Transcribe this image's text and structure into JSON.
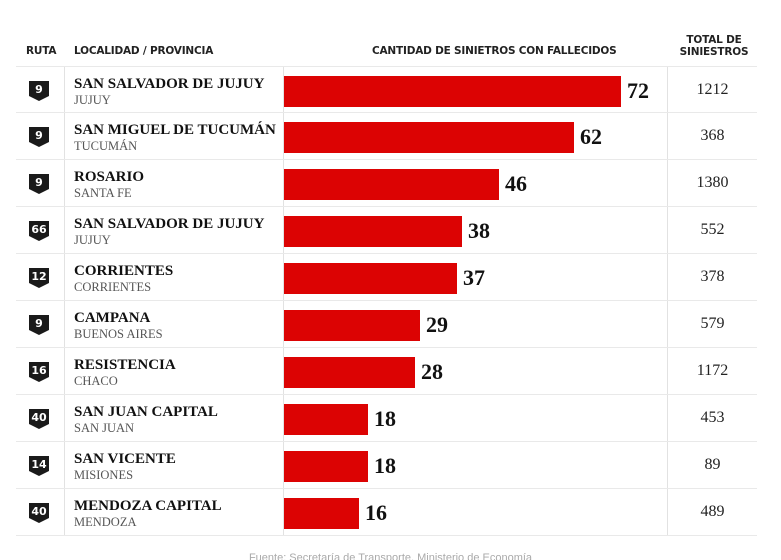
{
  "headers": {
    "ruta": "RUTA",
    "localidad": "LOCALIDAD / PROVINCIA",
    "cantidad": "CANTIDAD DE SINIETROS CON FALLECIDOS",
    "total_line1": "TOTAL DE",
    "total_line2": "SINIESTROS"
  },
  "rows": [
    {
      "ruta": "9",
      "city": "SAN SALVADOR DE JUJUY",
      "province": "JUJUY",
      "fatal": "72",
      "total": "1212"
    },
    {
      "ruta": "9",
      "city": "SAN MIGUEL DE TUCUMÁN",
      "province": "TUCUMÁN",
      "fatal": "62",
      "total": "368"
    },
    {
      "ruta": "9",
      "city": "ROSARIO",
      "province": "SANTA FE",
      "fatal": "46",
      "total": "1380"
    },
    {
      "ruta": "66",
      "city": "SAN SALVADOR DE JUJUY",
      "province": "JUJUY",
      "fatal": "38",
      "total": "552"
    },
    {
      "ruta": "12",
      "city": "CORRIENTES",
      "province": "CORRIENTES",
      "fatal": "37",
      "total": "378"
    },
    {
      "ruta": "9",
      "city": "CAMPANA",
      "province": "BUENOS AIRES",
      "fatal": "29",
      "total": "579"
    },
    {
      "ruta": "16",
      "city": "RESISTENCIA",
      "province": "CHACO",
      "fatal": "28",
      "total": "1172"
    },
    {
      "ruta": "40",
      "city": "SAN JUAN CAPITAL",
      "province": "SAN JUAN",
      "fatal": "18",
      "total": "453"
    },
    {
      "ruta": "14",
      "city": "SAN VICENTE",
      "province": "MISIONES",
      "fatal": "18",
      "total": "89"
    },
    {
      "ruta": "40",
      "city": "MENDOZA CAPITAL",
      "province": "MENDOZA",
      "fatal": "16",
      "total": "489"
    }
  ],
  "footer": "Fuente: Secretaría de Transporte, Ministerio de Economía",
  "colors": {
    "bar": "#dc0303",
    "shield": "#1a1a1a"
  },
  "chart_data": {
    "type": "bar",
    "orientation": "horizontal",
    "title": "",
    "xlabel": "CANTIDAD DE SINIETROS CON FALLECIDOS",
    "ylabel": "LOCALIDAD / PROVINCIA",
    "categories": [
      "SAN SALVADOR DE JUJUY (JUJUY) - Ruta 9",
      "SAN MIGUEL DE TUCUMÁN (TUCUMÁN) - Ruta 9",
      "ROSARIO (SANTA FE) - Ruta 9",
      "SAN SALVADOR DE JUJUY (JUJUY) - Ruta 66",
      "CORRIENTES (CORRIENTES) - Ruta 12",
      "CAMPANA (BUENOS AIRES) - Ruta 9",
      "RESISTENCIA (CHACO) - Ruta 16",
      "SAN JUAN CAPITAL (SAN JUAN) - Ruta 40",
      "SAN VICENTE (MISIONES) - Ruta 14",
      "MENDOZA CAPITAL (MENDOZA) - Ruta 40"
    ],
    "series": [
      {
        "name": "Cantidad de siniestros con fallecidos",
        "values": [
          72,
          62,
          46,
          38,
          37,
          29,
          28,
          18,
          18,
          16
        ]
      },
      {
        "name": "Total de siniestros",
        "values": [
          1212,
          368,
          1380,
          552,
          378,
          579,
          1172,
          453,
          89,
          489
        ]
      }
    ],
    "ruta": [
      9,
      9,
      9,
      66,
      12,
      9,
      16,
      40,
      14,
      40
    ],
    "xlim": [
      0,
      72
    ],
    "grid": false,
    "legend": "none",
    "source": "Fuente: Secretaría de Transporte, Ministerio de Economía"
  }
}
